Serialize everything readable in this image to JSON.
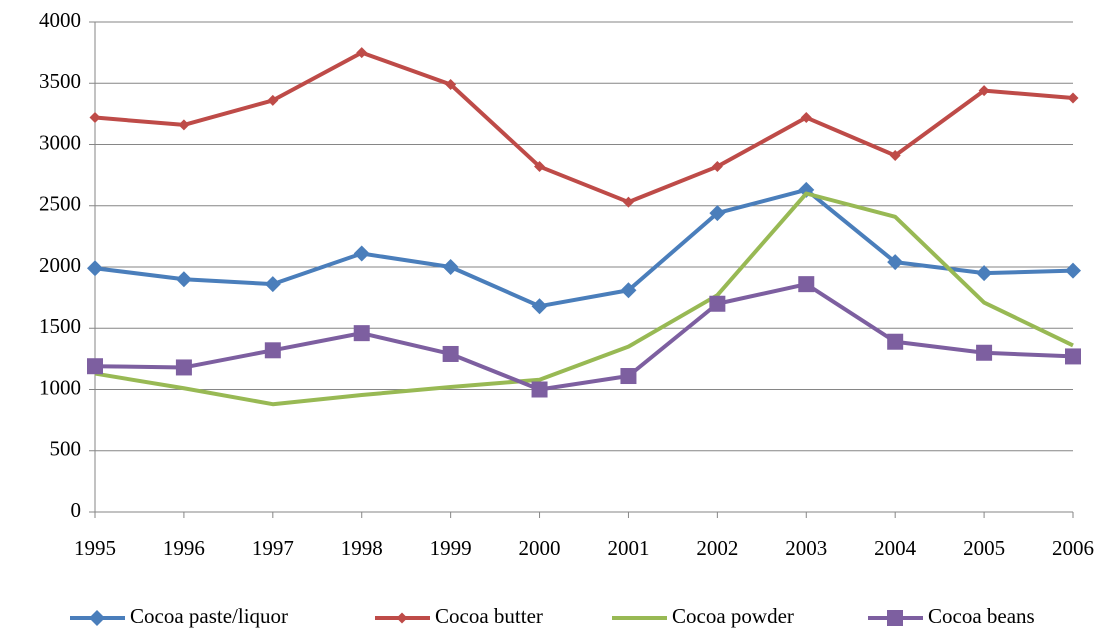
{
  "chart_data": {
    "type": "line",
    "x": [
      1995,
      1996,
      1997,
      1998,
      1999,
      2000,
      2001,
      2002,
      2003,
      2004,
      2005,
      2006
    ],
    "xlim": [
      1995,
      2006
    ],
    "xticks": [
      1995,
      1996,
      1997,
      1998,
      1999,
      2000,
      2001,
      2002,
      2003,
      2004,
      2005,
      2006
    ],
    "ylim": [
      0,
      4000
    ],
    "yticks": [
      0,
      500,
      1000,
      1500,
      2000,
      2500,
      3000,
      3500,
      4000
    ],
    "grid": true,
    "legend": "bottom",
    "series": [
      {
        "name": "Cocoa paste/liquor",
        "color": "#4a7ebb",
        "marker": "diamond",
        "values": [
          1990,
          1900,
          1860,
          2110,
          2000,
          1680,
          1810,
          2440,
          2630,
          2040,
          1950,
          1970
        ]
      },
      {
        "name": "Cocoa butter",
        "color": "#be4b48",
        "marker": "small-diamond",
        "values": [
          3220,
          3160,
          3360,
          3750,
          3490,
          2820,
          2530,
          2820,
          3220,
          2910,
          3440,
          3380
        ]
      },
      {
        "name": "Cocoa powder",
        "color": "#98b954",
        "marker": "none",
        "values": [
          1130,
          1010,
          880,
          955,
          1020,
          1080,
          1350,
          1770,
          2600,
          2410,
          1710,
          1360
        ]
      },
      {
        "name": "Cocoa beans",
        "color": "#7d5fa0",
        "marker": "square",
        "values": [
          1190,
          1180,
          1320,
          1460,
          1290,
          1000,
          1110,
          1700,
          1860,
          1390,
          1300,
          1270
        ]
      }
    ]
  }
}
